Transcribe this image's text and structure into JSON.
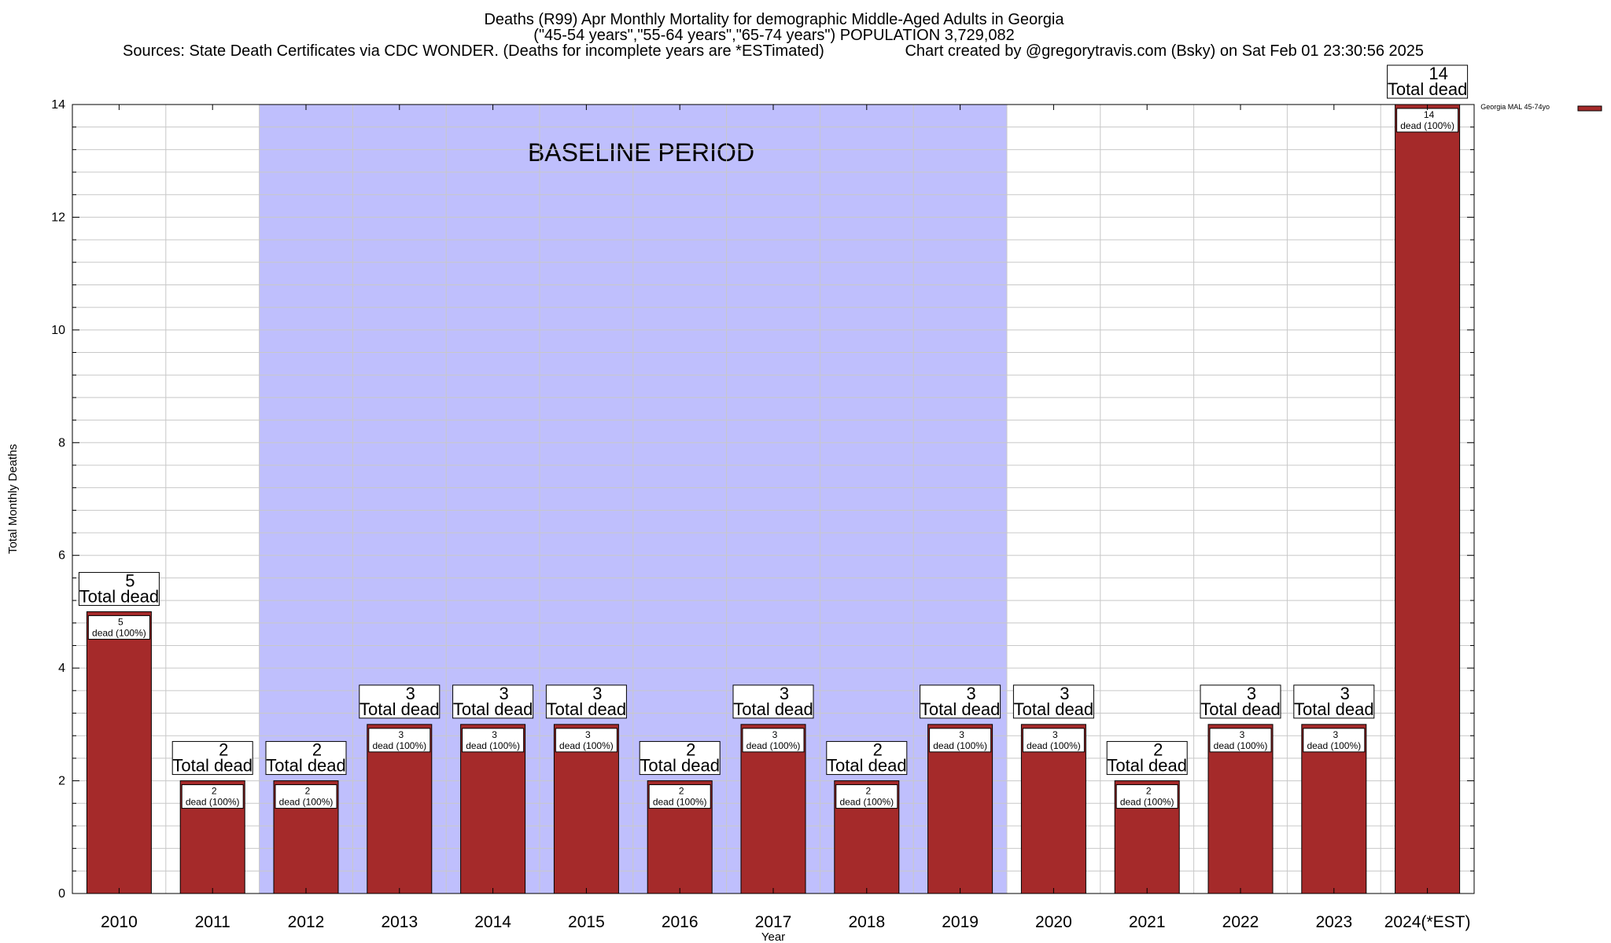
{
  "chart_data": {
    "type": "bar",
    "title_lines": [
      "Deaths (R99) Apr Monthly Mortality for demographic Middle-Aged Adults in Georgia",
      "(\"45-54 years\",\"55-64 years\",\"65-74 years\") POPULATION 3,729,082",
      "Sources: State Death Certificates via CDC WONDER. (Deaths for incomplete years are *ESTimated)",
      "Chart created by @gregorytravis.com (Bsky) on Sat Feb 01 23:30:56 2025"
    ],
    "xlabel": "Year",
    "ylabel": "Total Monthly Deaths",
    "ylim": [
      0,
      14
    ],
    "yticks": [
      0,
      2,
      4,
      6,
      8,
      10,
      12,
      14
    ],
    "minor_grid_step": 0.4,
    "grid": true,
    "categories": [
      "2010",
      "2011",
      "2012",
      "2013",
      "2014",
      "2015",
      "2016",
      "2017",
      "2018",
      "2019",
      "2020",
      "2021",
      "2022",
      "2023",
      "2024(*EST)"
    ],
    "series": [
      {
        "name": "Georgia MAL 45-74yo",
        "color": "#a52a2a",
        "values": [
          5,
          2,
          2,
          3,
          3,
          3,
          2,
          3,
          2,
          3,
          3,
          2,
          3,
          3,
          14
        ]
      }
    ],
    "total_label_text": "Total dead",
    "bar_label_text": "dead (100%)",
    "baseline_period": {
      "label": "BASELINE PERIOD",
      "start_category": "2012",
      "end_category": "2019",
      "color": "#bfbffd"
    },
    "legend_position": "top-right"
  }
}
